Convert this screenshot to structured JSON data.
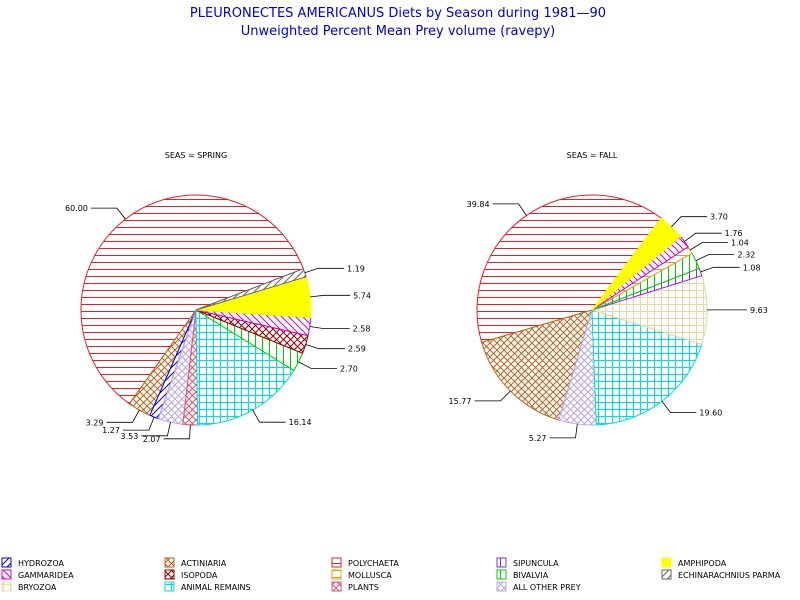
{
  "chart_data": {
    "type": "pie",
    "title": "PLEURONECTES AMERICANUS Diets by Season during 1981—90",
    "subtitle": "Unweighted Percent Mean Prey volume (ravepy)",
    "legend": [
      {
        "name": "HYDROZOA",
        "color": "#0000cc",
        "pattern": "diag-right"
      },
      {
        "name": "ACTINIARIA",
        "color": "#b5651d",
        "pattern": "crosshatch"
      },
      {
        "name": "POLYCHAETA",
        "color": "#e0202a",
        "pattern": "horizontal"
      },
      {
        "name": "SIPUNCULA",
        "color": "#8a2be2",
        "pattern": "vertical"
      },
      {
        "name": "AMPHIPODA",
        "color": "#ffff00",
        "pattern": "solid"
      },
      {
        "name": "GAMMARIDEA",
        "color": "#cc00cc",
        "pattern": "diag-left"
      },
      {
        "name": "ISOPODA",
        "color": "#8b0000",
        "pattern": "crosshatch"
      },
      {
        "name": "MOLLUSCA",
        "color": "#e0a020",
        "pattern": "horizontal"
      },
      {
        "name": "BIVALVIA",
        "color": "#00cc00",
        "pattern": "vertical"
      },
      {
        "name": "ECHINARACHNIUS PARMA",
        "color": "#666666",
        "pattern": "diag-right"
      },
      {
        "name": "BRYOZOA",
        "color": "#e8d8a8",
        "pattern": "grid"
      },
      {
        "name": "ANIMAL REMAINS",
        "color": "#00dddd",
        "pattern": "grid"
      },
      {
        "name": "PLANTS",
        "color": "#e05070",
        "pattern": "crosshatch"
      },
      {
        "name": "ALL OTHER PREY",
        "color": "#b8a8e0",
        "pattern": "crosshatch"
      }
    ],
    "panels": [
      {
        "label": "SEAS = SPRING",
        "slices": [
          {
            "category": "POLYCHAETA",
            "value": 60.0,
            "label": "60.00"
          },
          {
            "category": "ACTINIARIA",
            "value": 3.29,
            "label": "3.29"
          },
          {
            "category": "HYDROZOA",
            "value": 1.27,
            "label": "1.27"
          },
          {
            "category": "ALL OTHER PREY",
            "value": 3.53,
            "label": "3.53"
          },
          {
            "category": "PLANTS",
            "value": 2.07,
            "label": "2.07"
          },
          {
            "category": "ANIMAL REMAINS",
            "value": 16.14,
            "label": "16.14"
          },
          {
            "category": "BIVALVIA",
            "value": 2.7,
            "label": "2.70"
          },
          {
            "category": "ISOPODA",
            "value": 2.59,
            "label": "2.59"
          },
          {
            "category": "GAMMARIDEA",
            "value": 2.58,
            "label": "2.58"
          },
          {
            "category": "AMPHIPODA",
            "value": 5.74,
            "label": "5.74"
          },
          {
            "category": "ECHINARACHNIUS PARMA",
            "value": 1.19,
            "label": "1.19"
          }
        ]
      },
      {
        "label": "SEAS = FALL",
        "slices": [
          {
            "category": "POLYCHAETA",
            "value": 39.84,
            "label": "39.84"
          },
          {
            "category": "ACTINIARIA",
            "value": 15.77,
            "label": "15.77"
          },
          {
            "category": "ALL OTHER PREY",
            "value": 5.27,
            "label": "5.27"
          },
          {
            "category": "ANIMAL REMAINS",
            "value": 19.6,
            "label": "19.60"
          },
          {
            "category": "BRYOZOA",
            "value": 9.63,
            "label": "9.63"
          },
          {
            "category": "SIPUNCULA",
            "value": 1.08,
            "label": "1.08"
          },
          {
            "category": "BIVALVIA",
            "value": 2.32,
            "label": "2.32"
          },
          {
            "category": "MOLLUSCA",
            "value": 1.04,
            "label": "1.04"
          },
          {
            "category": "GAMMARIDEA",
            "value": 1.76,
            "label": "1.76"
          },
          {
            "category": "AMPHIPODA",
            "value": 3.7,
            "label": "3.70"
          }
        ]
      }
    ]
  }
}
